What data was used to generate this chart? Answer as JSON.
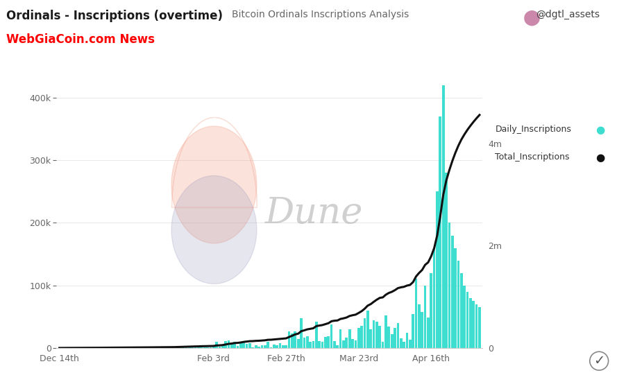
{
  "title1": "Ordinals - Inscriptions (overtime)",
  "title2": "Bitcoin Ordinals Inscriptions Analysis",
  "watermark_text": "WebGiaCoin.com News",
  "dune_watermark": "Dune",
  "handle": "@dgtl_assets",
  "bar_color": "#3DDDD0",
  "line_color": "#111111",
  "background_color": "#ffffff",
  "left_yticks": [
    0,
    100000,
    200000,
    300000,
    400000
  ],
  "left_yticklabels": [
    "0",
    "100k",
    "200k",
    "300k",
    "400k"
  ],
  "right_yticks": [
    0,
    2000000,
    4000000
  ],
  "right_yticklabels": [
    "0",
    "2m",
    "4m"
  ],
  "xtick_labels": [
    "Dec 14th",
    "Feb 3rd",
    "Feb 27th",
    "Mar 23rd",
    "Apr 16th"
  ],
  "xtick_positions": [
    0,
    51,
    75,
    99,
    123
  ],
  "legend_items": [
    "Daily_Inscriptions",
    "Total_Inscriptions"
  ],
  "legend_colors": [
    "#3DDDD0",
    "#111111"
  ],
  "num_days": 140,
  "left_ylim": [
    0,
    450000
  ],
  "right_ylim": [
    0,
    5500000
  ],
  "xlim": [
    -1,
    140
  ]
}
